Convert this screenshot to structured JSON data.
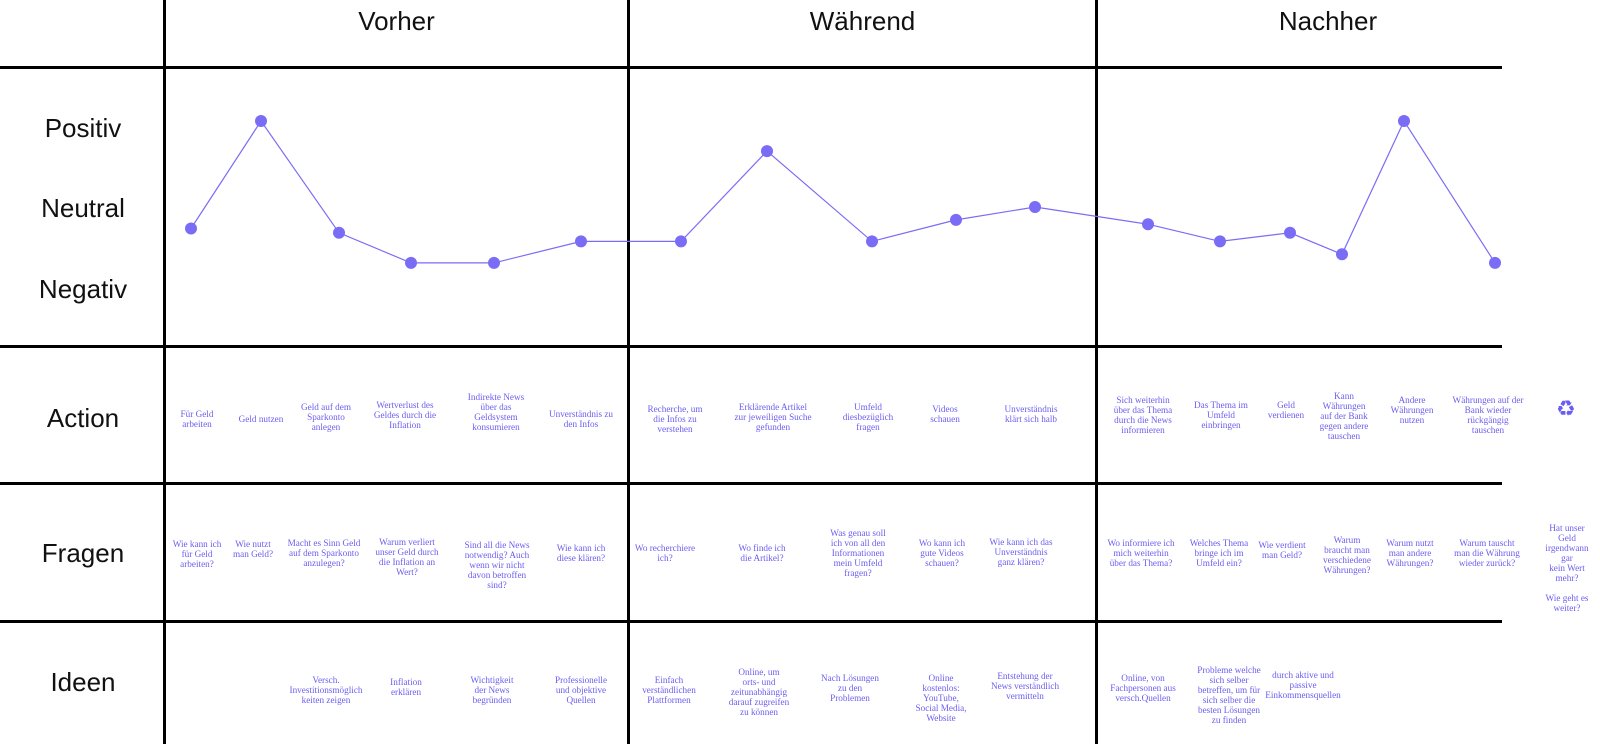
{
  "phases": [
    "Vorher",
    "Während",
    "Nachher"
  ],
  "row_labels": {
    "positiv": "Positiv",
    "neutral": "Neutral",
    "negativ": "Negativ",
    "action": "Action",
    "fragen": "Fragen",
    "ideen": "Ideen"
  },
  "accent_color": "#7b6cf6",
  "chart_data": {
    "type": "line",
    "y_categories": [
      "Negativ",
      "Neutral",
      "Positiv"
    ],
    "points": [
      {
        "step": 1,
        "level": -0.5
      },
      {
        "step": 2,
        "level": 2.0
      },
      {
        "step": 3,
        "level": -0.6
      },
      {
        "step": 4,
        "level": -1.3
      },
      {
        "step": 5,
        "level": -1.3
      },
      {
        "step": 6,
        "level": -0.8
      },
      {
        "step": 7,
        "level": -0.8
      },
      {
        "step": 8,
        "level": 1.3
      },
      {
        "step": 9,
        "level": -0.8
      },
      {
        "step": 10,
        "level": -0.3
      },
      {
        "step": 11,
        "level": 0.0
      },
      {
        "step": 12,
        "level": -0.4
      },
      {
        "step": 13,
        "level": -0.8
      },
      {
        "step": 14,
        "level": -0.6
      },
      {
        "step": 15,
        "level": -1.1
      },
      {
        "step": 16,
        "level": 2.0
      },
      {
        "step": 17,
        "level": -1.3
      }
    ]
  },
  "actions": [
    "Für Geld\narbeiten",
    "Geld nutzen",
    "Geld auf dem\nSparkonto\nanlegen",
    "Wertverlust des\nGeldes durch die\nInflation",
    "Indirekte News\nüber das\nGeldsystem\nkonsumieren",
    "Unverständnis zu\nden Infos",
    "Recherche, um\ndie Infos zu\nverstehen",
    "Erklärende Artikel\nzur jeweiligen Suche\ngefunden",
    "Umfeld\ndiesbezüglich\nfragen",
    "Videos\nschauen",
    "Unverständnis\nklärt sich halb",
    "Sich weiterhin\nüber das Thema\ndurch die News\ninformieren",
    "Das Thema im\nUmfeld\neinbringen",
    "Geld\nverdienen",
    "Kann\nWährungen\nauf der Bank\ngegen andere\ntauschen",
    "Andere\nWährungen\nnutzen",
    "Währungen auf der\nBank wieder\nrückgängig\ntauschen"
  ],
  "action_icon": "recycle-icon",
  "questions": [
    "Wie kann ich\nfür Geld\narbeiten?",
    "Wie nutzt\nman Geld?",
    "Macht es Sinn Geld\nauf dem Sparkonto\nanzulegen?",
    "Warum verliert\nunser Geld durch\ndie Inflation an\nWert?",
    "Sind all die News\nnotwendig? Auch\nwenn wir nicht\ndavon betroffen\nsind?",
    "Wie kann ich\ndiese klären?",
    "Wo recherchiere\nich?",
    "Wo finde ich\ndie Artikel?",
    "Was genau soll\nich von all den\nInformationen\nmein Umfeld\nfragen?",
    "Wo kann ich\ngute Videos\nschauen?",
    "Wie kann ich das\nUnverständnis\nganz klären?",
    "Wo informiere ich\nmich weiterhin\nüber das Thema?",
    "Welches Thema\nbringe ich im\nUmfeld ein?",
    "Wie verdient\nman Geld?",
    "Warum\nbraucht man\nverschiedene\nWährungen?",
    "Warum nutzt\nman andere\nWährungen?",
    "Warum tauscht\nman die Währung\nwieder zurück?",
    "Hat unser Geld\nirgendwann gar\nkein Wert mehr?\n\nWie geht es\nweiter?"
  ],
  "ideas": [
    "Versch.\nInvestitionsmöglich\nkeiten zeigen",
    "Inflation\nerklären",
    "Wichtigkeit\nder News\nbegründen",
    "Professionelle\nund objektive\nQuellen",
    "Einfach\nverständlichen\nPlattformen",
    "Online, um\norts- und\nzeitunabhängig\ndarauf zugreifen\nzu können",
    "Nach Lösungen\nzu den\nProblemen",
    "Online\nkostenlos:\nYouTube,\nSocial Media,\nWebsite",
    "Entstehung der\nNews verständlich\nvermitteln",
    "Online, von\nFachpersonen aus\nversch.Quellen",
    "Probleme welche\nsich selber\nbetreffen, um für\nsich selber die\nbesten Lösungen\nzu finden",
    "durch aktive und\npassive\nEinkommensquellen"
  ]
}
